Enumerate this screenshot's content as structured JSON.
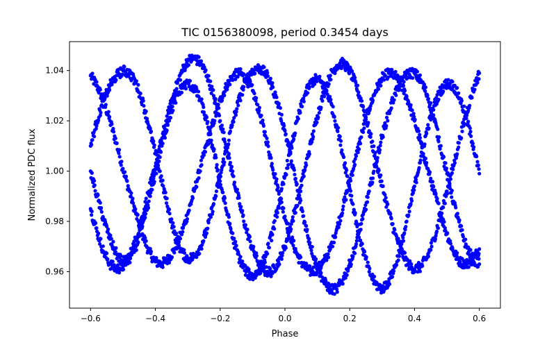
{
  "chart_data": {
    "type": "scatter",
    "title": "TIC 0156380098, period 0.3454 days",
    "xlabel": "Phase",
    "ylabel": "Normalized PDC flux",
    "xlim": [
      -0.665,
      0.665
    ],
    "ylim": [
      0.9455,
      1.0515
    ],
    "xticks": [
      -0.6,
      -0.4,
      -0.2,
      0.0,
      0.2,
      0.4,
      0.6
    ],
    "xtick_labels": [
      "−0.6",
      "−0.4",
      "−0.2",
      "0.0",
      "0.2",
      "0.4",
      "0.6"
    ],
    "yticks": [
      0.96,
      0.98,
      1.0,
      1.02,
      1.04
    ],
    "ytick_labels": [
      "0.96",
      "0.98",
      "1.00",
      "1.02",
      "1.04"
    ],
    "grid": false,
    "legend": "none",
    "marker_color": "#0000ff",
    "series": [
      {
        "label_note": "dense periodic tracks, 4 sinusoidal curves over phase -0.6..0.6",
        "x": [
          -0.6,
          -0.58,
          -0.56,
          -0.54,
          -0.52,
          -0.5,
          -0.48,
          -0.46,
          -0.44,
          -0.42,
          -0.4,
          -0.38,
          -0.36,
          -0.34,
          -0.32,
          -0.3,
          -0.28,
          -0.26,
          -0.24,
          -0.22,
          -0.2,
          -0.18,
          -0.16,
          -0.14,
          -0.12,
          -0.1,
          -0.08,
          -0.06,
          -0.04,
          -0.02,
          0.0,
          0.02,
          0.04,
          0.06,
          0.08,
          0.1,
          0.12,
          0.14,
          0.16,
          0.18,
          0.2,
          0.22,
          0.24,
          0.26,
          0.28,
          0.3,
          0.32,
          0.34,
          0.36,
          0.38,
          0.4,
          0.42,
          0.44,
          0.46,
          0.48,
          0.5,
          0.52,
          0.54,
          0.56,
          0.58,
          0.6
        ],
        "y": [
          1.038,
          1.034,
          1.028,
          1.02,
          1.011,
          1.001,
          0.992,
          0.983,
          0.975,
          0.968,
          0.964,
          0.963,
          0.965,
          0.969,
          0.975,
          0.983,
          0.992,
          1.002,
          1.011,
          1.02,
          1.028,
          1.034,
          1.038,
          1.039,
          1.037,
          1.032,
          1.024,
          1.014,
          1.003,
          0.992,
          0.982,
          0.973,
          0.966,
          0.962,
          0.96,
          0.961,
          0.964,
          0.969,
          0.977,
          0.986,
          0.996,
          1.006,
          1.016,
          1.025,
          1.032,
          1.037,
          1.039,
          1.038,
          1.034,
          1.028,
          1.02,
          1.011,
          1.001,
          0.992,
          0.983,
          0.975,
          0.968,
          0.964,
          0.963,
          0.965,
          0.969
        ]
      },
      {
        "x": [
          -0.6,
          -0.58,
          -0.56,
          -0.54,
          -0.52,
          -0.5,
          -0.48,
          -0.46,
          -0.44,
          -0.42,
          -0.4,
          -0.38,
          -0.36,
          -0.34,
          -0.32,
          -0.3,
          -0.28,
          -0.26,
          -0.24,
          -0.22,
          -0.2,
          -0.18,
          -0.16,
          -0.14,
          -0.12,
          -0.1,
          -0.08,
          -0.06,
          -0.04,
          -0.02,
          0.0,
          0.02,
          0.04,
          0.06,
          0.08,
          0.1,
          0.12,
          0.14,
          0.16,
          0.18,
          0.2,
          0.22,
          0.24,
          0.26,
          0.28,
          0.3,
          0.32,
          0.34,
          0.36,
          0.38,
          0.4,
          0.42,
          0.44,
          0.46,
          0.48,
          0.5,
          0.52,
          0.54,
          0.56,
          0.58,
          0.6
        ],
        "y": [
          0.985,
          0.976,
          0.968,
          0.963,
          0.961,
          0.962,
          0.966,
          0.973,
          0.982,
          0.992,
          1.002,
          1.013,
          1.023,
          1.032,
          1.039,
          1.044,
          1.045,
          1.043,
          1.038,
          1.03,
          1.02,
          1.009,
          0.998,
          0.987,
          0.977,
          0.969,
          0.963,
          0.96,
          0.96,
          0.964,
          0.97,
          0.979,
          0.989,
          1.0,
          1.011,
          1.022,
          1.031,
          1.038,
          1.042,
          1.043,
          1.04,
          1.034,
          1.026,
          1.016,
          1.005,
          0.994,
          0.984,
          0.975,
          0.968,
          0.963,
          0.961,
          0.962,
          0.966,
          0.973,
          0.982,
          0.992,
          1.002,
          1.013,
          1.023,
          1.032,
          1.039
        ]
      },
      {
        "x": [
          -0.6,
          -0.58,
          -0.56,
          -0.54,
          -0.52,
          -0.5,
          -0.48,
          -0.46,
          -0.44,
          -0.42,
          -0.4,
          -0.38,
          -0.36,
          -0.34,
          -0.32,
          -0.3,
          -0.28,
          -0.26,
          -0.24,
          -0.22,
          -0.2,
          -0.18,
          -0.16,
          -0.14,
          -0.12,
          -0.1,
          -0.08,
          -0.06,
          -0.04,
          -0.02,
          0.0,
          0.02,
          0.04,
          0.06,
          0.08,
          0.1,
          0.12,
          0.14,
          0.16,
          0.18,
          0.2,
          0.22,
          0.24,
          0.26,
          0.28,
          0.3,
          0.32,
          0.34,
          0.36,
          0.38,
          0.4,
          0.42,
          0.44,
          0.46,
          0.48,
          0.5,
          0.52,
          0.54,
          0.56,
          0.58,
          0.6
        ],
        "y": [
          1.01,
          1.02,
          1.028,
          1.034,
          1.038,
          1.04,
          1.039,
          1.035,
          1.028,
          1.018,
          1.007,
          0.996,
          0.985,
          0.975,
          0.968,
          0.965,
          0.966,
          0.97,
          0.977,
          0.987,
          0.998,
          1.009,
          1.02,
          1.029,
          1.036,
          1.04,
          1.041,
          1.039,
          1.034,
          1.026,
          1.016,
          1.004,
          0.992,
          0.98,
          0.97,
          0.962,
          0.956,
          0.953,
          0.953,
          0.957,
          0.963,
          0.971,
          0.981,
          0.992,
          1.003,
          1.014,
          1.023,
          1.031,
          1.036,
          1.039,
          1.039,
          1.036,
          1.03,
          1.021,
          1.01,
          0.999,
          0.988,
          0.978,
          0.97,
          0.965,
          0.963
        ]
      },
      {
        "x": [
          -0.6,
          -0.58,
          -0.56,
          -0.54,
          -0.52,
          -0.5,
          -0.48,
          -0.46,
          -0.44,
          -0.42,
          -0.4,
          -0.38,
          -0.36,
          -0.34,
          -0.32,
          -0.3,
          -0.28,
          -0.26,
          -0.24,
          -0.22,
          -0.2,
          -0.18,
          -0.16,
          -0.14,
          -0.12,
          -0.1,
          -0.08,
          -0.06,
          -0.04,
          -0.02,
          0.0,
          0.02,
          0.04,
          0.06,
          0.08,
          0.1,
          0.12,
          0.14,
          0.16,
          0.18,
          0.2,
          0.22,
          0.24,
          0.26,
          0.28,
          0.3,
          0.32,
          0.34,
          0.36,
          0.38,
          0.4,
          0.42,
          0.44,
          0.46,
          0.48,
          0.5,
          0.52,
          0.54,
          0.56,
          0.58,
          0.6
        ],
        "y": [
          1.0,
          0.99,
          0.981,
          0.973,
          0.967,
          0.964,
          0.965,
          0.97,
          0.978,
          0.988,
          0.999,
          1.01,
          1.02,
          1.028,
          1.033,
          1.035,
          1.033,
          1.028,
          1.019,
          1.008,
          0.996,
          0.984,
          0.973,
          0.965,
          0.96,
          0.958,
          0.96,
          0.966,
          0.975,
          0.986,
          0.998,
          1.01,
          1.021,
          1.03,
          1.035,
          1.037,
          1.034,
          1.028,
          1.018,
          1.006,
          0.993,
          0.98,
          0.969,
          0.96,
          0.955,
          0.953,
          0.956,
          0.962,
          0.971,
          0.982,
          0.994,
          1.006,
          1.017,
          1.026,
          1.032,
          1.035,
          1.034,
          1.029,
          1.021,
          1.011,
          0.999
        ]
      }
    ]
  }
}
